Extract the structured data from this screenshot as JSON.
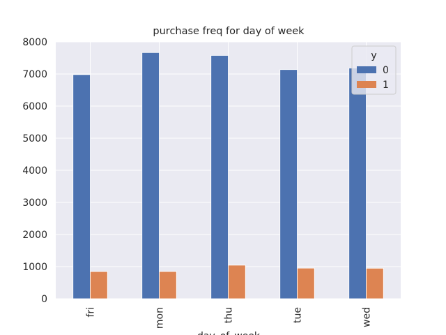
{
  "chart_data": {
    "type": "bar",
    "title": "purchase freq for day of week",
    "xlabel": "day_of_week",
    "categories": [
      "fri",
      "mon",
      "thu",
      "tue",
      "wed"
    ],
    "series": [
      {
        "name": "0",
        "color": "#4c72b0",
        "values": [
          6981,
          7667,
          7578,
          7137,
          7185
        ]
      },
      {
        "name": "1",
        "color": "#dd8452",
        "values": [
          846,
          847,
          1045,
          953,
          949
        ]
      }
    ],
    "ylim": [
      0,
      8000
    ],
    "yticks": [
      0,
      1000,
      2000,
      3000,
      4000,
      5000,
      6000,
      7000,
      8000
    ],
    "grid": true,
    "legend_title": "y",
    "legend": "upper right"
  }
}
